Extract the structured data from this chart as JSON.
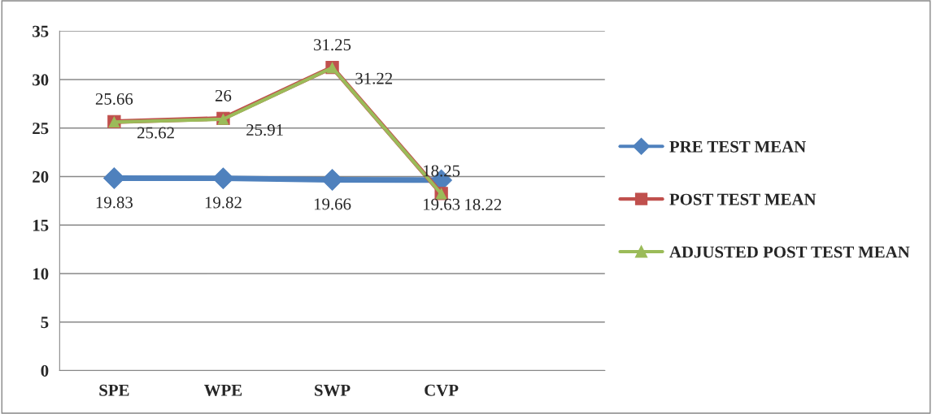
{
  "chart_data": {
    "type": "line",
    "categories": [
      "SPE",
      "WPE",
      "SWP",
      "CVP",
      null
    ],
    "series": [
      {
        "name": "PRE TEST MEAN",
        "color": "#4f81bd",
        "marker": "diamond",
        "values": [
          19.83,
          19.82,
          19.66,
          19.63,
          null
        ]
      },
      {
        "name": "POST TEST MEAN",
        "color": "#c0504d",
        "marker": "square",
        "values": [
          25.66,
          26,
          31.25,
          18.25,
          null
        ]
      },
      {
        "name": "ADJUSTED POST TEST MEAN",
        "color": "#9bbb59",
        "marker": "triangle",
        "values": [
          25.62,
          25.91,
          31.22,
          18.22,
          null
        ]
      }
    ],
    "ylim": [
      0,
      35
    ],
    "yticks": [
      0,
      5,
      10,
      15,
      20,
      25,
      30,
      35
    ],
    "grid": "y",
    "legend": "right",
    "data_labels": true,
    "line_style": "solid"
  }
}
